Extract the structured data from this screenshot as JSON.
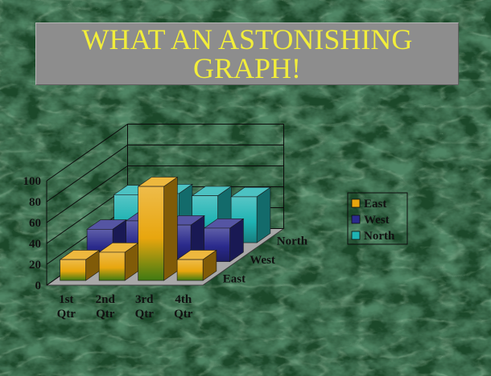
{
  "slide": {
    "title_lines": [
      "WHAT AN ASTONISHING",
      "GRAPH!"
    ],
    "colors": {
      "title_text": "#f2ee3a",
      "title_box": "#8d8d8d",
      "background": "#1e4a2c"
    },
    "background_texture": "green-marble"
  },
  "chart_data": {
    "type": "bar",
    "subtype": "3d-column",
    "title": "",
    "categories": [
      "1st Qtr",
      "2nd Qtr",
      "3rd Qtr",
      "4th Qtr"
    ],
    "category_lines": [
      [
        "1st",
        "Qtr"
      ],
      [
        "2nd",
        "Qtr"
      ],
      [
        "3rd",
        "Qtr"
      ],
      [
        "4th",
        "Qtr"
      ]
    ],
    "series": [
      {
        "name": "East",
        "color": "#e8a60e",
        "values": [
          20,
          27,
          90,
          20
        ]
      },
      {
        "name": "West",
        "color": "#2a2a8c",
        "values": [
          31,
          39,
          35,
          32
        ]
      },
      {
        "name": "North",
        "color": "#1fb3b3",
        "values": [
          46,
          47,
          45,
          44
        ]
      }
    ],
    "yticks": [
      0,
      20,
      40,
      60,
      80,
      100
    ],
    "ylim": [
      0,
      100
    ],
    "grid": true,
    "legend": {
      "position": "right",
      "entries": [
        "East",
        "West",
        "North"
      ]
    }
  }
}
